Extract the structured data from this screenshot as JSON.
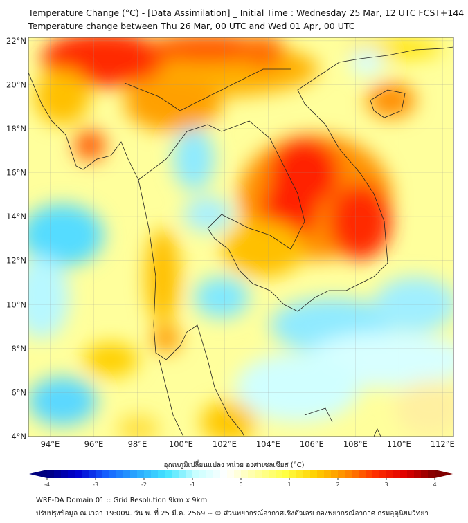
{
  "header": {
    "title": "Temperature Change (°C) - [Data Assimilation] _ Initial Time : Wednesday 25 Mar, 12 UTC FCST+144",
    "subtitle": "Temperature change between Thu 26 Mar, 00 UTC and Wed 01 Apr, 00 UTC"
  },
  "map": {
    "lat_ticks": [
      "22°N",
      "20°N",
      "18°N",
      "16°N",
      "14°N",
      "12°N",
      "10°N",
      "8°N",
      "6°N",
      "4°N"
    ],
    "lon_ticks": [
      "94°E",
      "96°E",
      "98°E",
      "100°E",
      "102°E",
      "104°E",
      "106°E",
      "108°E",
      "110°E",
      "112°E"
    ],
    "extent": {
      "lon": [
        93.0,
        112.5
      ],
      "lat": [
        4.0,
        22.15
      ]
    }
  },
  "colorbar": {
    "title": "อุณหภูมิเปลี่ยนแปลง หน่วย องศาเซลเซียส (°C)",
    "ticks": [
      "-4",
      "-3",
      "-2",
      "-1",
      "0",
      "1",
      "2",
      "3",
      "4"
    ],
    "range": [
      -4,
      4
    ],
    "colors": [
      "#00007f",
      "#0000d0",
      "#1560ff",
      "#2aa8ff",
      "#44e4ff",
      "#c8ffff",
      "#ffffff",
      "#ffffa0",
      "#ffff44",
      "#ffd000",
      "#ff8c00",
      "#ff3000",
      "#e00000",
      "#800000"
    ]
  },
  "footer": {
    "line1": "WRF-DA Domain 01 :: Grid Resolution 9km x 9km",
    "line2": "ปรับปรุงข้อมูล ณ เวลา 19:00น. วัน พ. ที่ 25 มี.ค. 2569 -- © ส่วนพยากรณ์อากาศเชิงตัวเลข กองพยากรณ์อากาศ กรมอุตุนิยมวิทยา"
  }
}
